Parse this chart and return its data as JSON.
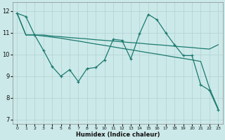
{
  "bg_color": "#cce9e9",
  "grid_color": "#b0d0d0",
  "line_color": "#1a7a6e",
  "xlabel": "Humidex (Indice chaleur)",
  "ylim": [
    6.8,
    12.4
  ],
  "xlim": [
    -0.5,
    23.5
  ],
  "yticks": [
    7,
    8,
    9,
    10,
    11,
    12
  ],
  "xticks": [
    0,
    1,
    2,
    3,
    4,
    5,
    6,
    7,
    8,
    9,
    10,
    11,
    12,
    13,
    14,
    15,
    16,
    17,
    18,
    19,
    20,
    21,
    22,
    23
  ],
  "line1_x": [
    0,
    1,
    2,
    3,
    4,
    5,
    6,
    7,
    8,
    9,
    10,
    11,
    12,
    13,
    14,
    15,
    16,
    17,
    18,
    19,
    20,
    21,
    22,
    23
  ],
  "line1_y": [
    11.9,
    10.9,
    10.9,
    10.9,
    10.85,
    10.82,
    10.78,
    10.75,
    10.72,
    10.68,
    10.65,
    10.62,
    10.58,
    10.55,
    10.52,
    10.48,
    10.45,
    10.42,
    10.38,
    10.35,
    10.32,
    10.28,
    10.25,
    10.45
  ],
  "line2_x": [
    0,
    1,
    2,
    3,
    4,
    5,
    6,
    7,
    8,
    9,
    10,
    11,
    12,
    13,
    14,
    15,
    16,
    17,
    18,
    19,
    20,
    21,
    22,
    23
  ],
  "line2_y": [
    11.9,
    10.9,
    10.9,
    10.85,
    10.8,
    10.75,
    10.68,
    10.62,
    10.55,
    10.48,
    10.42,
    10.35,
    10.28,
    10.22,
    10.15,
    10.08,
    10.02,
    9.95,
    9.88,
    9.82,
    9.75,
    9.68,
    8.45,
    7.5
  ],
  "line3_x": [
    0,
    1,
    2,
    3,
    4,
    5,
    6,
    7,
    8,
    9,
    10,
    11,
    12,
    13,
    14,
    15,
    16,
    17,
    18,
    19,
    20,
    21,
    22,
    23
  ],
  "line3_y": [
    11.9,
    11.75,
    10.9,
    10.2,
    9.45,
    9.0,
    9.3,
    8.75,
    9.35,
    9.4,
    9.75,
    10.7,
    10.65,
    9.8,
    10.95,
    11.85,
    11.6,
    11.0,
    10.45,
    9.95,
    9.95,
    8.6,
    8.35,
    7.45
  ]
}
